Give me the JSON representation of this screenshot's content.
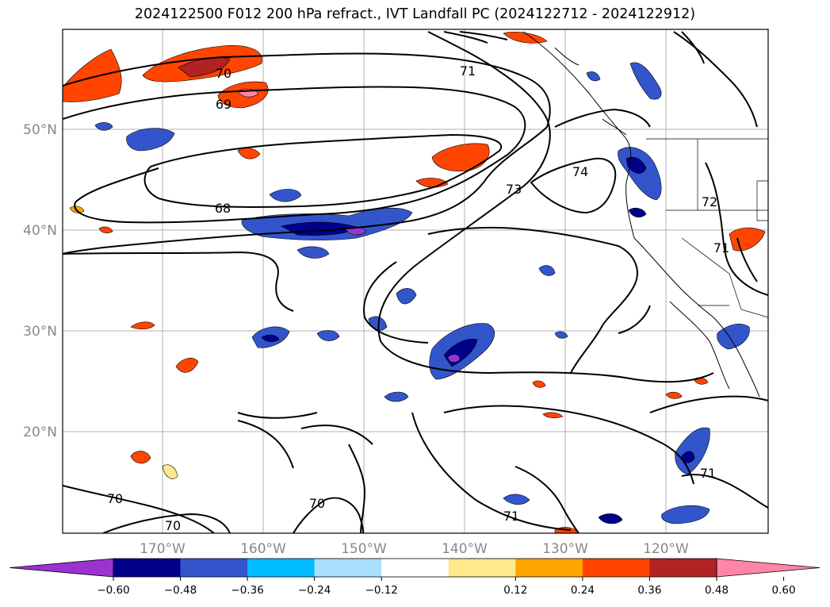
{
  "title": "2024122500 F012 200 hPa refract., IVT Landfall PC (2024122712 - 2024122912)",
  "axes": {
    "lon_ticks": [
      "170°W",
      "160°W",
      "150°W",
      "140°W",
      "130°W",
      "120°W"
    ],
    "lat_ticks": [
      "50°N",
      "40°N",
      "30°N",
      "20°N"
    ]
  },
  "contour_labels": [
    "70",
    "69",
    "68",
    "71",
    "73",
    "74",
    "72",
    "71",
    "70",
    "70",
    "70",
    "71",
    "71"
  ],
  "colorbar": {
    "colors": [
      "#9a33d1",
      "#00008b",
      "#3355cc",
      "#00bbff",
      "#aadfff",
      "#ffffff",
      "#ffe98c",
      "#ffa500",
      "#ff4500",
      "#b22222",
      "#ff85a8"
    ],
    "tick_labels": [
      "−0.60",
      "−0.48",
      "−0.36",
      "−0.24",
      "−0.12",
      "0.12",
      "0.24",
      "0.36",
      "0.48",
      "0.60"
    ]
  }
}
